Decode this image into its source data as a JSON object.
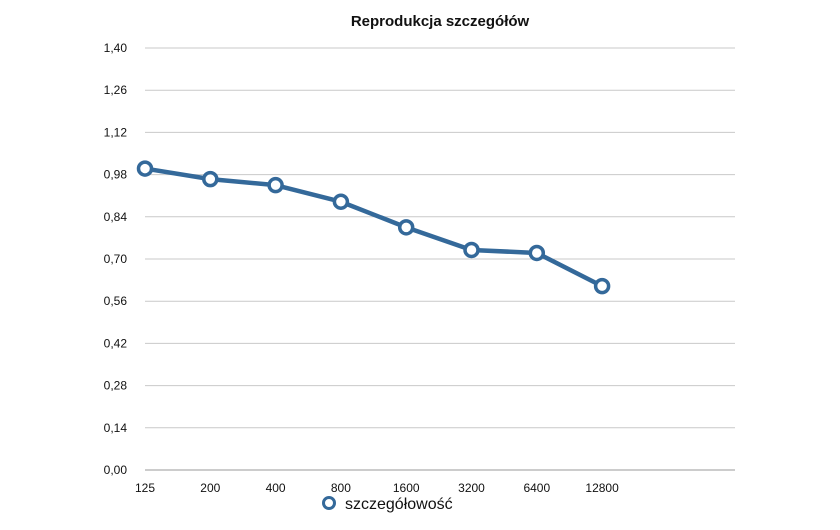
{
  "chart_data": {
    "type": "line",
    "title": "Reprodukcja szczegółów",
    "xlabel": "",
    "ylabel": "",
    "categories": [
      "125",
      "200",
      "400",
      "800",
      "1600",
      "3200",
      "6400",
      "12800"
    ],
    "y_ticks": [
      "0,00",
      "0,14",
      "0,28",
      "0,42",
      "0,56",
      "0,70",
      "0,84",
      "0,98",
      "1,12",
      "1,26",
      "1,40"
    ],
    "ylim": [
      0,
      1.4
    ],
    "grid": true,
    "legend_position": "bottom",
    "series": [
      {
        "name": "szczegółowość",
        "color": "#34699a",
        "values": [
          1.0,
          0.965,
          0.945,
          0.89,
          0.805,
          0.73,
          0.72,
          0.61
        ]
      }
    ]
  }
}
